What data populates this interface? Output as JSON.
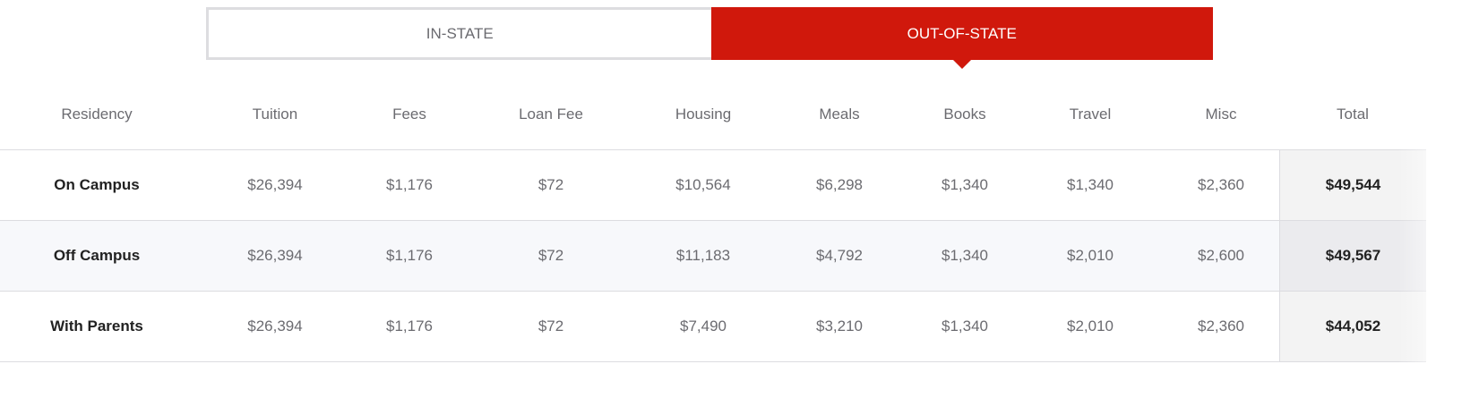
{
  "tabs": [
    {
      "label": "IN-STATE",
      "active": false
    },
    {
      "label": "OUT-OF-STATE",
      "active": true
    }
  ],
  "colors": {
    "accent": "#d0180c"
  },
  "table": {
    "headers": [
      "Residency",
      "Tuition",
      "Fees",
      "Loan Fee",
      "Housing",
      "Meals",
      "Books",
      "Travel",
      "Misc",
      "Total"
    ],
    "rows": [
      [
        "On Campus",
        "$26,394",
        "$1,176",
        "$72",
        "$10,564",
        "$6,298",
        "$1,340",
        "$1,340",
        "$2,360",
        "$49,544"
      ],
      [
        "Off Campus",
        "$26,394",
        "$1,176",
        "$72",
        "$11,183",
        "$4,792",
        "$1,340",
        "$2,010",
        "$2,600",
        "$49,567"
      ],
      [
        "With Parents",
        "$26,394",
        "$1,176",
        "$72",
        "$7,490",
        "$3,210",
        "$1,340",
        "$2,010",
        "$2,360",
        "$44,052"
      ]
    ]
  }
}
